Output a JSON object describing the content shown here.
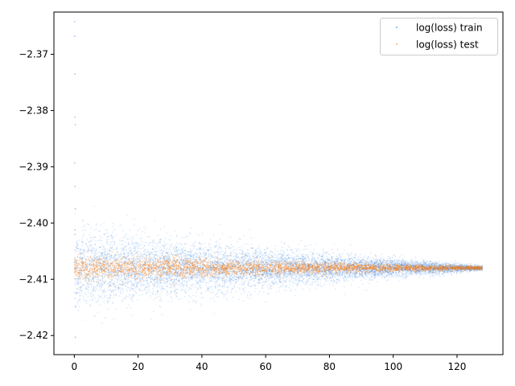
{
  "chart_data": {
    "type": "scatter",
    "title": "",
    "xlabel": "",
    "ylabel": "",
    "xlim": [
      -6.4,
      134.4
    ],
    "ylim": [
      -2.4234,
      -2.3625
    ],
    "x_ticks": [
      0,
      20,
      40,
      60,
      80,
      100,
      120
    ],
    "x_tick_labels": [
      "0",
      "20",
      "40",
      "60",
      "80",
      "100",
      "120"
    ],
    "y_ticks": [
      -2.37,
      -2.38,
      -2.39,
      -2.4,
      -2.41,
      -2.42
    ],
    "y_tick_labels": [
      "−2.37",
      "−2.38",
      "−2.39",
      "−2.40",
      "−2.41",
      "−2.42"
    ],
    "grid": false,
    "legend": {
      "position": "top-right"
    },
    "x_range": [
      0,
      128
    ],
    "series": [
      {
        "name": "log(loss) train",
        "color": "#1f77e0",
        "center": -2.408,
        "spread_start": 0.0035,
        "spread_end": 0.0002,
        "outliers": [
          [
            0.1,
            -2.3642
          ],
          [
            0.1,
            -2.3668
          ],
          [
            0.2,
            -2.3735
          ],
          [
            0.2,
            -2.3812
          ],
          [
            0.3,
            -2.3825
          ],
          [
            0.1,
            -2.3893
          ],
          [
            0.2,
            -2.3935
          ],
          [
            0.3,
            -2.3975
          ],
          [
            0.2,
            -2.4012
          ],
          [
            0.4,
            -2.4148
          ],
          [
            0.3,
            -2.4203
          ],
          [
            0.5,
            -2.4125
          ]
        ]
      },
      {
        "name": "log(loss) test",
        "color": "#ff7f0e",
        "center": -2.408,
        "spread_start": 0.0012,
        "spread_end": 0.00015,
        "outliers": []
      }
    ]
  }
}
